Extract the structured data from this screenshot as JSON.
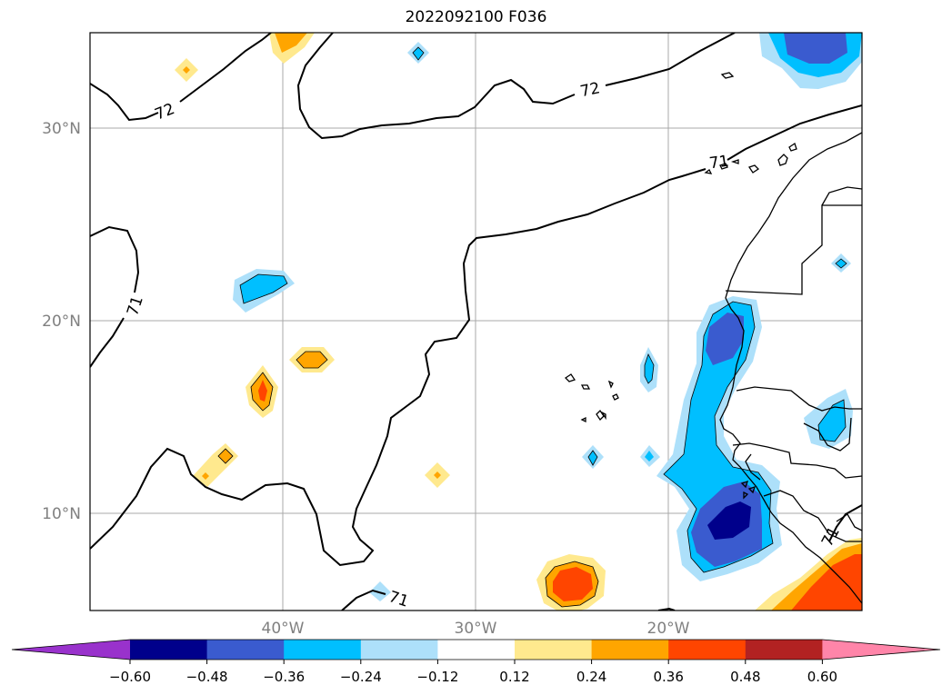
{
  "title": "2022092100 F036",
  "map": {
    "lat_ticks": [
      "30°N",
      "20°N",
      "10°N"
    ],
    "lon_ticks": [
      "40°W",
      "30°W",
      "20°W"
    ],
    "contour_labels": [
      "72",
      "72",
      "71",
      "71",
      "71",
      "71"
    ]
  },
  "colorbar": {
    "ticks": [
      "−0.60",
      "−0.48",
      "−0.36",
      "−0.24",
      "−0.12",
      "0.12",
      "0.24",
      "0.36",
      "0.48",
      "0.60"
    ],
    "colors": [
      "#9932CC",
      "#00008B",
      "#3A5BCF",
      "#00BFFF",
      "#ADE0FA",
      "#FFFFFF",
      "#FFE98E",
      "#FFA500",
      "#FF4500",
      "#B22222",
      "#FF85A9"
    ]
  },
  "colors": {
    "grid": "#a8a8a8",
    "tick_label": "#808080",
    "contour": "#000000"
  }
}
